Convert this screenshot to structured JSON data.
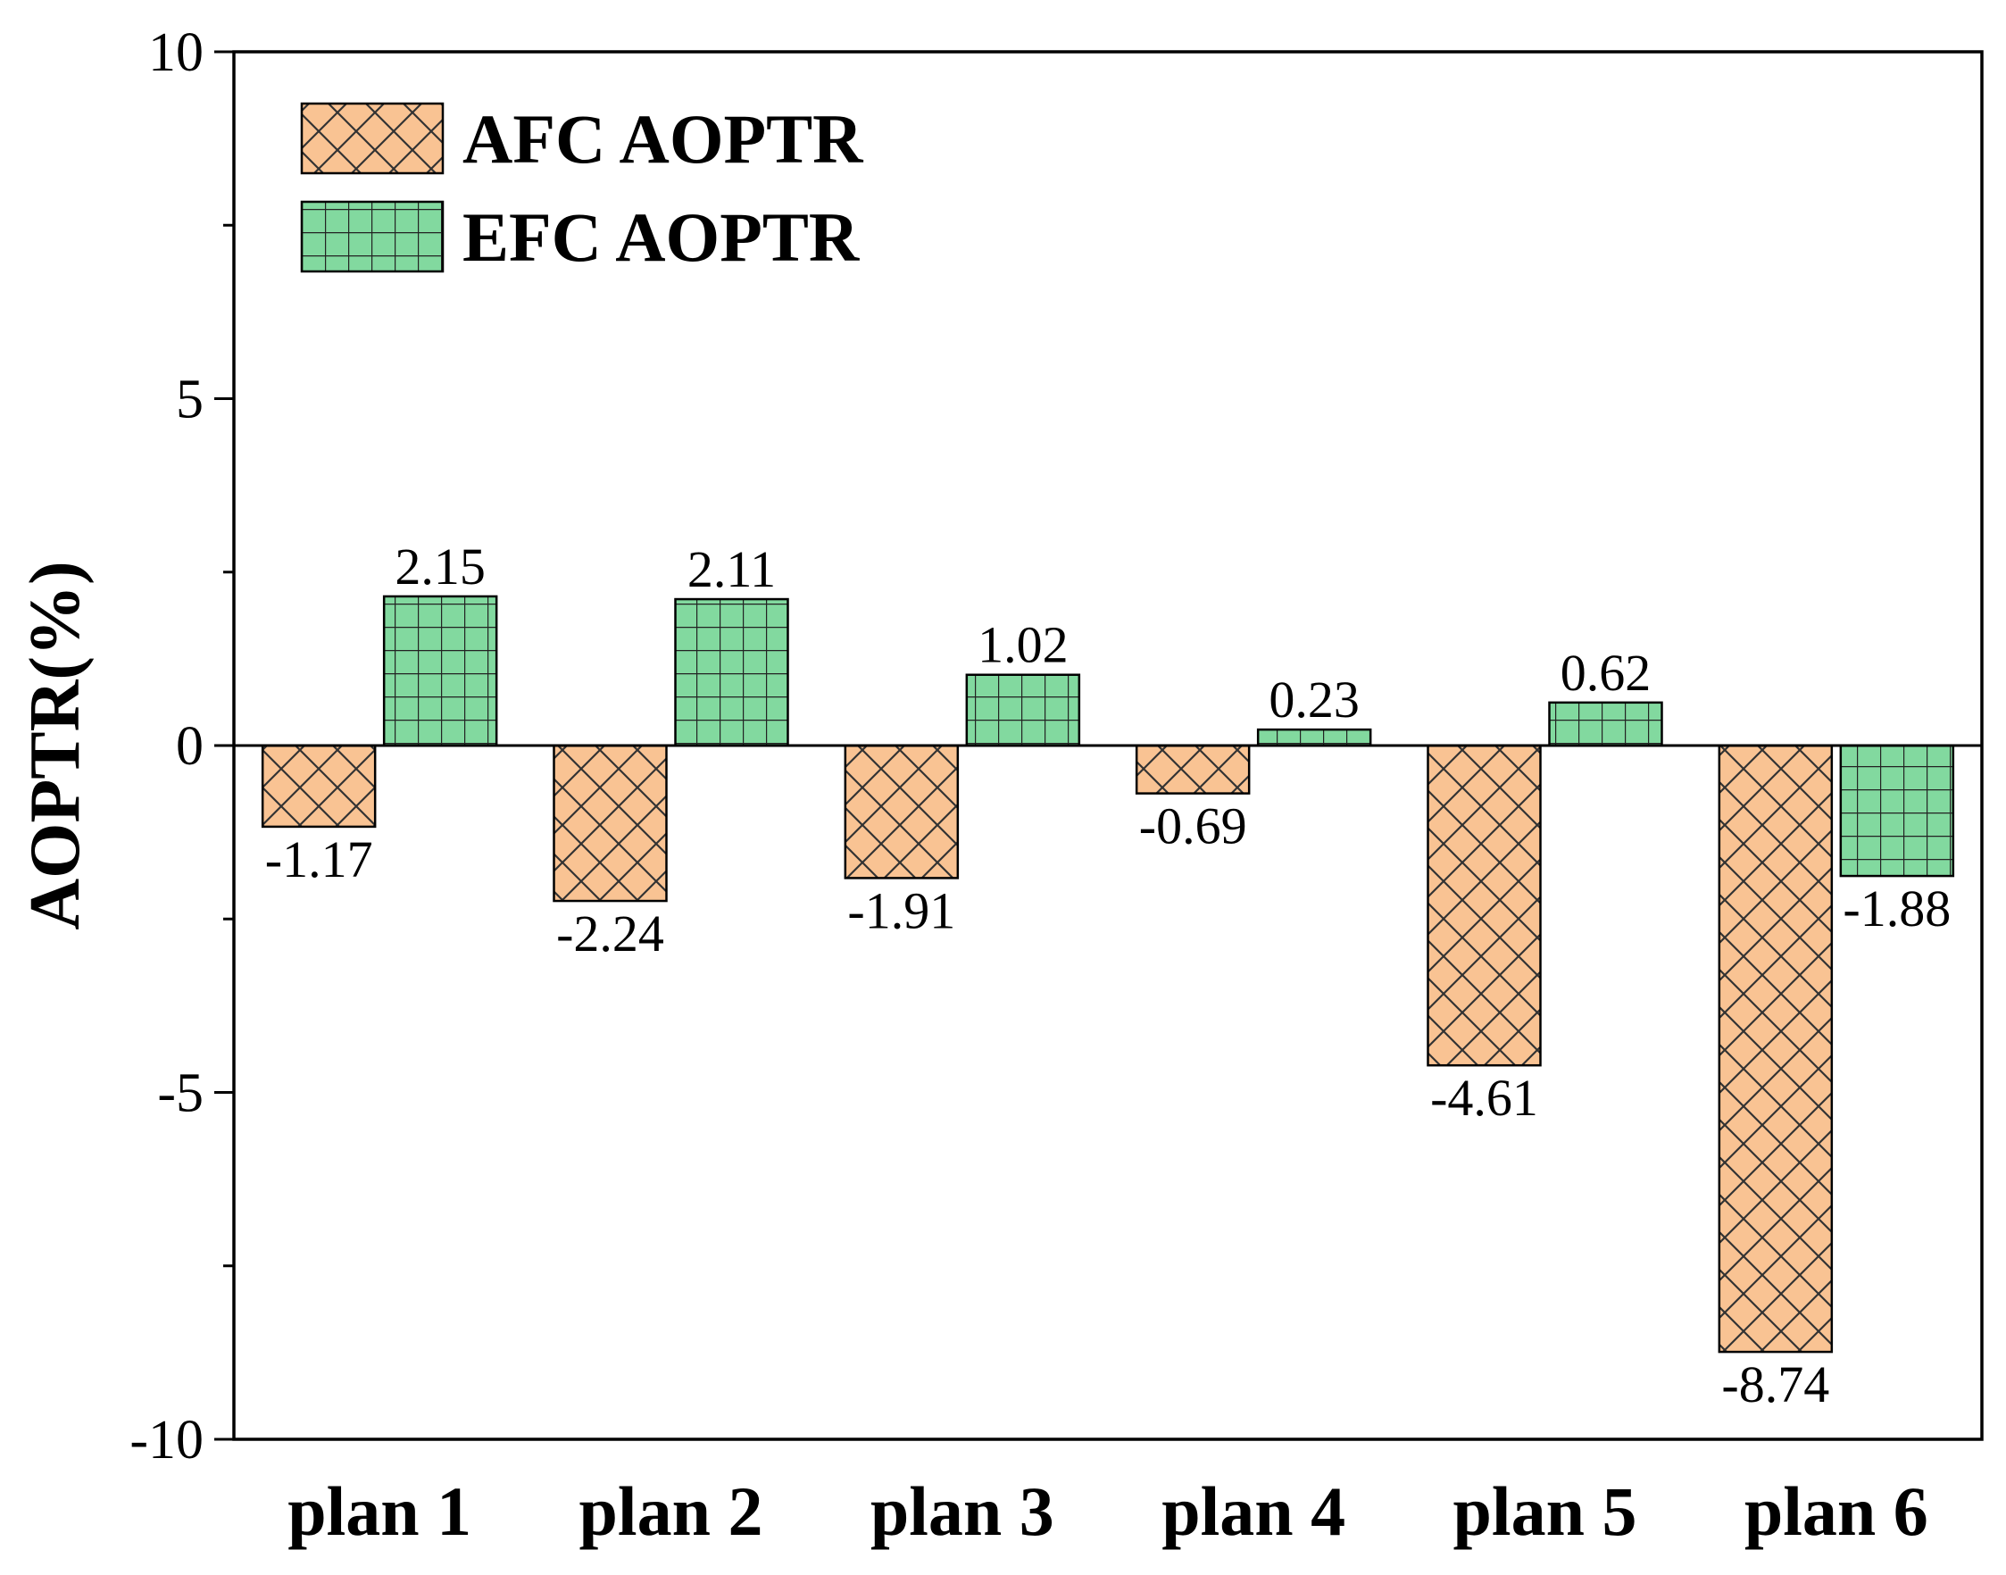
{
  "chart_data": {
    "type": "bar",
    "title": "",
    "xlabel": "",
    "ylabel": "AOPTR(%)",
    "ylim": [
      -10,
      10
    ],
    "yticks": [
      -10,
      -5,
      0,
      5,
      10
    ],
    "grid": false,
    "legend_position": "top-left",
    "categories": [
      "plan 1",
      "plan 2",
      "plan 3",
      "plan 4",
      "plan 5",
      "plan 6"
    ],
    "series": [
      {
        "name": "AFC AOPTR",
        "values": [
          -1.17,
          -2.24,
          -1.91,
          -0.69,
          -4.61,
          -8.74
        ],
        "labels": [
          "-1.17",
          "-2.24",
          "-1.91",
          "-0.69",
          "-4.61",
          "-8.74"
        ],
        "color": "#F9C393",
        "pattern": "crosshatch-diagonal"
      },
      {
        "name": "EFC AOPTR",
        "values": [
          2.15,
          2.11,
          1.02,
          0.23,
          0.62,
          -1.88
        ],
        "labels": [
          "2.15",
          "2.11",
          "1.02",
          "0.23",
          "0.62",
          "-1.88"
        ],
        "color": "#82D99F",
        "pattern": "grid-square"
      }
    ]
  }
}
